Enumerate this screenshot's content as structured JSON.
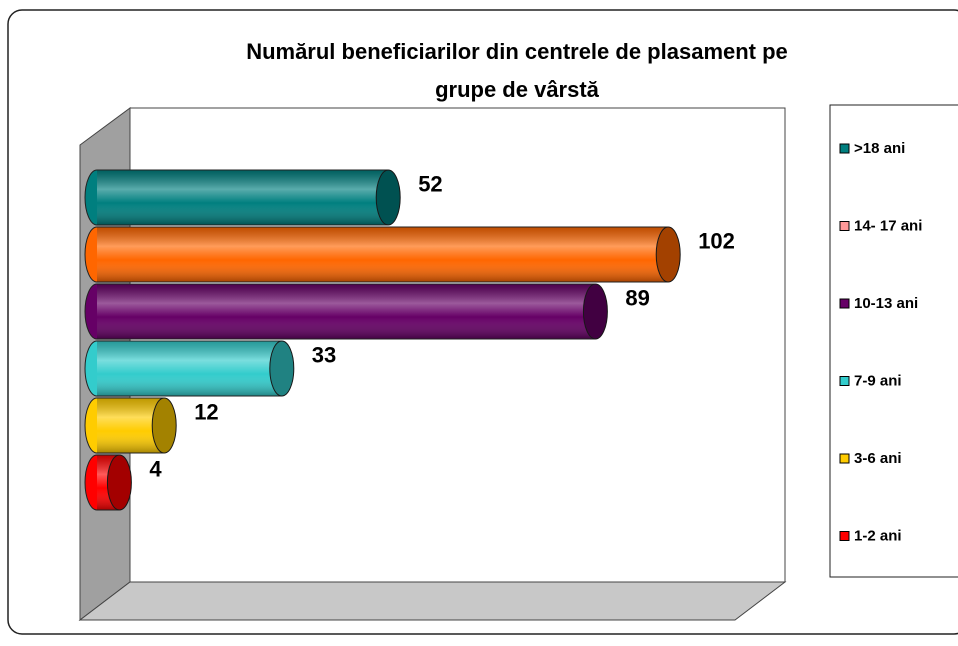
{
  "chart_data": {
    "type": "bar",
    "orientation": "horizontal",
    "style": "3d-cylinder",
    "title": "Numărul beneficiarilor din centrele de plasament pe grupe de vârstă",
    "series": [
      {
        "name": ">18 ani",
        "color": "#007f7f",
        "values": [
          52
        ]
      },
      {
        "name": "14- 17 ani",
        "color": "#ff6600",
        "legend_color": "#ff9999",
        "values": [
          102
        ]
      },
      {
        "name": "10-13 ani",
        "color": "#660066",
        "values": [
          89
        ]
      },
      {
        "name": "7-9 ani",
        "color": "#33cccc",
        "values": [
          33
        ]
      },
      {
        "name": "3-6 ani",
        "color": "#ffcc00",
        "values": [
          12
        ]
      },
      {
        "name": "1-2 ani",
        "color": "#ff0000",
        "values": [
          4
        ]
      }
    ],
    "legend": "right"
  }
}
